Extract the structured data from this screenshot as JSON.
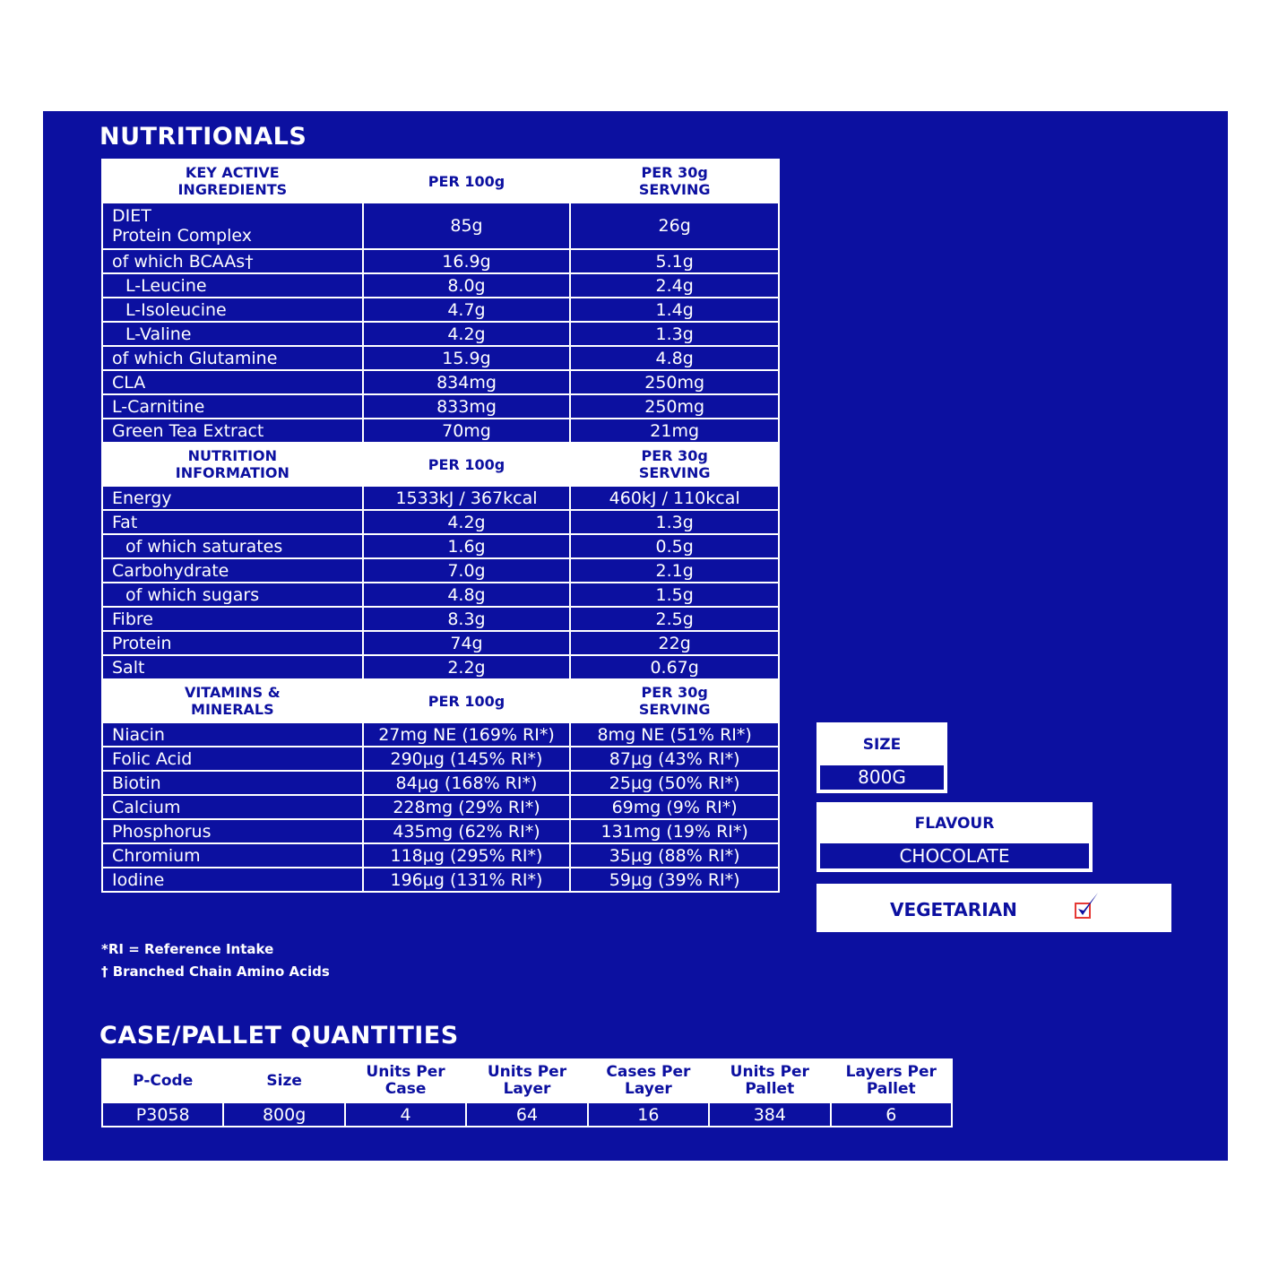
{
  "nutritionals": {
    "title": "NUTRITIONALS",
    "sections": [
      {
        "headers": [
          "KEY ACTIVE\nINGREDIENTS",
          "PER 100g",
          "PER 30g\nSERVING"
        ],
        "rows": [
          {
            "name": "DIET\nProtein Complex",
            "per100": "85g",
            "perServing": "26g"
          },
          {
            "name": "of which BCAAs†",
            "per100": "16.9g",
            "perServing": "5.1g"
          },
          {
            "name": "L-Leucine",
            "per100": "8.0g",
            "perServing": "2.4g",
            "indent": true
          },
          {
            "name": "L-Isoleucine",
            "per100": "4.7g",
            "perServing": "1.4g",
            "indent": true
          },
          {
            "name": "L-Valine",
            "per100": "4.2g",
            "perServing": "1.3g",
            "indent": true
          },
          {
            "name": "of which Glutamine",
            "per100": "15.9g",
            "perServing": "4.8g"
          },
          {
            "name": "CLA",
            "per100": "834mg",
            "perServing": "250mg"
          },
          {
            "name": "L-Carnitine",
            "per100": "833mg",
            "perServing": "250mg"
          },
          {
            "name": "Green Tea Extract",
            "per100": "70mg",
            "perServing": "21mg"
          }
        ]
      },
      {
        "headers": [
          "NUTRITION\nINFORMATION",
          "PER 100g",
          "PER 30g\nSERVING"
        ],
        "rows": [
          {
            "name": "Energy",
            "per100": "1533kJ / 367kcal",
            "perServing": "460kJ / 110kcal"
          },
          {
            "name": "Fat",
            "per100": "4.2g",
            "perServing": "1.3g"
          },
          {
            "name": "of which saturates",
            "per100": "1.6g",
            "perServing": "0.5g",
            "indent": true
          },
          {
            "name": "Carbohydrate",
            "per100": "7.0g",
            "perServing": "2.1g"
          },
          {
            "name": "of which sugars",
            "per100": "4.8g",
            "perServing": "1.5g",
            "indent": true
          },
          {
            "name": "Fibre",
            "per100": "8.3g",
            "perServing": "2.5g"
          },
          {
            "name": "Protein",
            "per100": "74g",
            "perServing": "22g"
          },
          {
            "name": "Salt",
            "per100": "2.2g",
            "perServing": "0.67g"
          }
        ]
      },
      {
        "headers": [
          "VITAMINS &\nMINERALS",
          "PER 100g",
          "PER 30g\nSERVING"
        ],
        "rows": [
          {
            "name": "Niacin",
            "per100": "27mg NE (169% RI*)",
            "perServing": "8mg NE (51% RI*)"
          },
          {
            "name": "Folic Acid",
            "per100": "290µg (145% RI*)",
            "perServing": "87µg (43% RI*)"
          },
          {
            "name": "Biotin",
            "per100": "84µg (168% RI*)",
            "perServing": "25µg (50% RI*)"
          },
          {
            "name": "Calcium",
            "per100": "228mg (29% RI*)",
            "perServing": "69mg (9% RI*)"
          },
          {
            "name": "Phosphorus",
            "per100": "435mg (62% RI*)",
            "perServing": "131mg (19% RI*)"
          },
          {
            "name": "Chromium",
            "per100": "118µg (295% RI*)",
            "perServing": "35µg (88% RI*)"
          },
          {
            "name": "Iodine",
            "per100": "196µg (131% RI*)",
            "perServing": "59µg (39% RI*)"
          }
        ]
      }
    ],
    "footnotes": [
      "*RI = Reference Intake",
      "† Branched Chain Amino Acids"
    ]
  },
  "size": {
    "label": "SIZE",
    "value": "800G"
  },
  "flavour": {
    "label": "FLAVOUR",
    "value": "CHOCOLATE"
  },
  "vegetarian": {
    "label": "VEGETARIAN",
    "checked": true,
    "icon": "checkbox-checked-icon"
  },
  "case": {
    "title": "CASE/PALLET QUANTITIES",
    "headers": [
      "P-Code",
      "Size",
      "Units Per\nCase",
      "Units Per\nLayer",
      "Cases Per\nLayer",
      "Units Per\nPallet",
      "Layers Per\nPallet"
    ],
    "values": [
      "P3058",
      "800g",
      "4",
      "64",
      "16",
      "384",
      "6"
    ]
  },
  "colors": {
    "background": "#0c10a0",
    "text": "#ffffff",
    "check_box": "#e53935"
  }
}
